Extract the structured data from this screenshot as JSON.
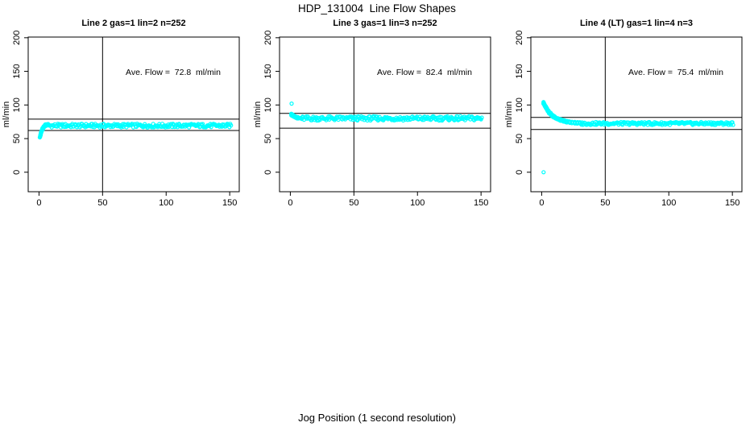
{
  "figure": {
    "title": "HDP_131004  Line Flow Shapes",
    "xlabel": "Jog Position (1 second resolution)",
    "background": "#FFFFFF",
    "axis_color": "#000000"
  },
  "chart_data": {
    "type": "scatter",
    "shared": {
      "ylabel": "ml/min",
      "xticks": [
        0,
        50,
        100,
        150
      ],
      "yticks": [
        0,
        50,
        100,
        150,
        200
      ],
      "xlim": [
        -8.5,
        157.5
      ],
      "ylim": [
        -29,
        201
      ],
      "vline_x": 50,
      "grid": false,
      "legend": "none",
      "marker": "open-circle",
      "marker_color": "#00FFFF",
      "line_color": "#000000"
    },
    "panels": [
      {
        "title": "Line 2 gas=1 lin=2 n=252",
        "annotation": "Ave. Flow =  72.8  ml/min",
        "ave_flow_ml_min": 72.8,
        "gas": 1,
        "lin": 2,
        "n": 252,
        "seed": 1,
        "hlines": [
          79,
          62
        ],
        "anchors": [
          [
            0.8,
            53
          ],
          [
            1.2,
            56
          ],
          [
            1.6,
            58.5
          ],
          [
            2,
            60.8
          ],
          [
            2.4,
            62.7
          ],
          [
            2.8,
            64.4
          ],
          [
            3.2,
            65.8
          ],
          [
            3.6,
            67
          ],
          [
            4,
            68
          ],
          [
            4.5,
            68.9
          ],
          [
            5,
            69.5
          ],
          [
            5.5,
            70
          ],
          [
            6,
            70.4
          ],
          [
            6.5,
            70.7
          ],
          [
            7,
            71
          ]
        ],
        "steady": {
          "x_from": 7,
          "x_to": 151,
          "value": 69.3,
          "jitter": 2.8,
          "step": 0.6
        },
        "outliers": []
      },
      {
        "title": "Line 3 gas=1 lin=3 n=252",
        "annotation": "Ave. Flow =  82.4  ml/min",
        "ave_flow_ml_min": 82.4,
        "gas": 1,
        "lin": 3,
        "n": 252,
        "seed": 2,
        "hlines": [
          87.5,
          65.5
        ],
        "anchors": [
          [
            1,
            86
          ],
          [
            1.4,
            85.2
          ],
          [
            1.8,
            84.5
          ],
          [
            2.2,
            84
          ],
          [
            2.6,
            83.5
          ],
          [
            3,
            83
          ],
          [
            3.5,
            82.6
          ],
          [
            4,
            82.2
          ],
          [
            4.5,
            81.9
          ],
          [
            5,
            81.6
          ],
          [
            5.5,
            81.3
          ],
          [
            6,
            81
          ]
        ],
        "steady": {
          "x_from": 6,
          "x_to": 151,
          "value": 80,
          "jitter": 3.2,
          "step": 0.6
        },
        "outliers": [
          [
            1,
            102
          ]
        ]
      },
      {
        "title": "Line 4 (LT) gas=1 lin=4 n=3",
        "annotation": "Ave. Flow =  75.4  ml/min",
        "ave_flow_ml_min": 75.4,
        "gas": 1,
        "lin": 4,
        "n": 3,
        "seed": 3,
        "hlines": [
          81.5,
          63.5
        ],
        "anchors": [
          [
            1.5,
            103
          ],
          [
            2,
            101
          ],
          [
            2.5,
            99.2
          ],
          [
            3,
            97.5
          ],
          [
            3.5,
            95.8
          ],
          [
            4,
            94.2
          ],
          [
            4.5,
            92.7
          ],
          [
            5,
            91.3
          ],
          [
            5.5,
            90
          ],
          [
            6,
            88.8
          ],
          [
            6.5,
            87.7
          ],
          [
            7,
            86.7
          ],
          [
            7.5,
            85.8
          ],
          [
            8,
            85
          ],
          [
            9,
            83.5
          ],
          [
            10,
            82.2
          ],
          [
            11,
            81
          ],
          [
            12,
            80
          ],
          [
            13,
            79.1
          ],
          [
            14,
            78.3
          ],
          [
            15,
            77.6
          ],
          [
            16,
            77
          ],
          [
            17,
            76.4
          ],
          [
            18,
            75.9
          ],
          [
            19,
            75.4
          ],
          [
            20,
            75
          ],
          [
            22,
            74.4
          ],
          [
            24,
            73.9
          ],
          [
            26,
            73.5
          ],
          [
            28,
            73.2
          ],
          [
            30,
            73
          ]
        ],
        "steady": {
          "x_from": 30,
          "x_to": 151,
          "value": 72.5,
          "jitter": 2.2,
          "step": 0.6
        },
        "outliers": [
          [
            1.5,
            0
          ]
        ]
      }
    ]
  }
}
